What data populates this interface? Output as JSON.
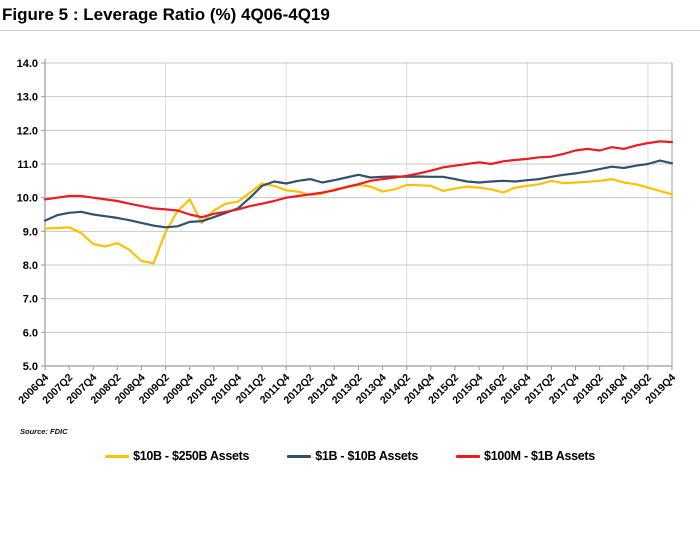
{
  "title": "Figure 5 : Leverage Ratio (%) 4Q06-4Q19",
  "source": "Source: FDIC",
  "colors": {
    "grid": "#c8c8c8",
    "grid_faint": "#dcdcdc",
    "axis": "#9b9b9b",
    "background": "#ffffff"
  },
  "chart_data": {
    "type": "line",
    "title": "Figure 5 : Leverage Ratio (%) 4Q06-4Q19",
    "xlabel": "",
    "ylabel": "",
    "ylim": [
      5.0,
      14.0
    ],
    "y_ticks": [
      "5.0",
      "6.0",
      "7.0",
      "8.0",
      "9.0",
      "10.0",
      "11.0",
      "12.0",
      "13.0",
      "14.0"
    ],
    "x_ticks": [
      "2006Q4",
      "2007Q2",
      "2007Q4",
      "2008Q2",
      "2008Q4",
      "2009Q2",
      "2009Q4",
      "2010Q2",
      "2010Q4",
      "2011Q2",
      "2011Q4",
      "2012Q2",
      "2012Q4",
      "2013Q2",
      "2013Q4",
      "2014Q2",
      "2014Q4",
      "2015Q2",
      "2015Q4",
      "2016Q2",
      "2016Q4",
      "2017Q2",
      "2017Q4",
      "2018Q2",
      "2018Q4",
      "2019Q2",
      "2019Q4"
    ],
    "x_tick_every": 2,
    "grid": "horizontal",
    "legend_position": "bottom",
    "categories": [
      "2006Q4",
      "2007Q1",
      "2007Q2",
      "2007Q3",
      "2007Q4",
      "2008Q1",
      "2008Q2",
      "2008Q3",
      "2008Q4",
      "2009Q1",
      "2009Q2",
      "2009Q3",
      "2009Q4",
      "2010Q1",
      "2010Q2",
      "2010Q3",
      "2010Q4",
      "2011Q1",
      "2011Q2",
      "2011Q3",
      "2011Q4",
      "2012Q1",
      "2012Q2",
      "2012Q3",
      "2012Q4",
      "2013Q1",
      "2013Q2",
      "2013Q3",
      "2013Q4",
      "2014Q1",
      "2014Q2",
      "2014Q3",
      "2014Q4",
      "2015Q1",
      "2015Q2",
      "2015Q3",
      "2015Q4",
      "2016Q1",
      "2016Q2",
      "2016Q3",
      "2016Q4",
      "2017Q1",
      "2017Q2",
      "2017Q3",
      "2017Q4",
      "2018Q1",
      "2018Q2",
      "2018Q3",
      "2018Q4",
      "2019Q1",
      "2019Q2",
      "2019Q3",
      "2019Q4"
    ],
    "series": [
      {
        "name": "$10B - $250B Assets",
        "color": "#FFC000",
        "values": [
          9.08,
          9.1,
          9.12,
          8.95,
          8.62,
          8.55,
          8.65,
          8.45,
          8.12,
          8.05,
          8.98,
          9.6,
          9.95,
          9.25,
          9.62,
          9.82,
          9.88,
          10.15,
          10.42,
          10.35,
          10.22,
          10.18,
          10.08,
          10.12,
          10.25,
          10.3,
          10.38,
          10.33,
          10.18,
          10.25,
          10.38,
          10.37,
          10.35,
          10.2,
          10.27,
          10.33,
          10.3,
          10.25,
          10.15,
          10.3,
          10.35,
          10.4,
          10.5,
          10.43,
          10.45,
          10.47,
          10.5,
          10.55,
          10.45,
          10.4,
          10.3,
          10.2,
          10.1
        ]
      },
      {
        "name": "$1B - $10B Assets",
        "color": "#31516D",
        "values": [
          9.32,
          9.48,
          9.55,
          9.58,
          9.5,
          9.45,
          9.4,
          9.33,
          9.25,
          9.17,
          9.12,
          9.15,
          9.28,
          9.3,
          9.42,
          9.55,
          9.68,
          10.0,
          10.35,
          10.48,
          10.42,
          10.5,
          10.55,
          10.45,
          10.52,
          10.6,
          10.68,
          10.6,
          10.62,
          10.63,
          10.62,
          10.63,
          10.62,
          10.62,
          10.55,
          10.48,
          10.45,
          10.48,
          10.5,
          10.48,
          10.52,
          10.55,
          10.62,
          10.68,
          10.72,
          10.78,
          10.85,
          10.92,
          10.88,
          10.95,
          11.0,
          11.1,
          11.02
        ]
      },
      {
        "name": "$100M - $1B Assets",
        "color": "#ED1C24",
        "values": [
          9.95,
          10.0,
          10.05,
          10.05,
          10.0,
          9.95,
          9.9,
          9.82,
          9.75,
          9.68,
          9.65,
          9.62,
          9.5,
          9.42,
          9.52,
          9.58,
          9.65,
          9.75,
          9.82,
          9.9,
          10.0,
          10.05,
          10.1,
          10.15,
          10.22,
          10.32,
          10.4,
          10.5,
          10.55,
          10.6,
          10.65,
          10.72,
          10.8,
          10.9,
          10.95,
          11.0,
          11.05,
          11.0,
          11.08,
          11.12,
          11.15,
          11.2,
          11.22,
          11.3,
          11.4,
          11.45,
          11.4,
          11.5,
          11.45,
          11.55,
          11.62,
          11.67,
          11.65
        ]
      }
    ]
  }
}
